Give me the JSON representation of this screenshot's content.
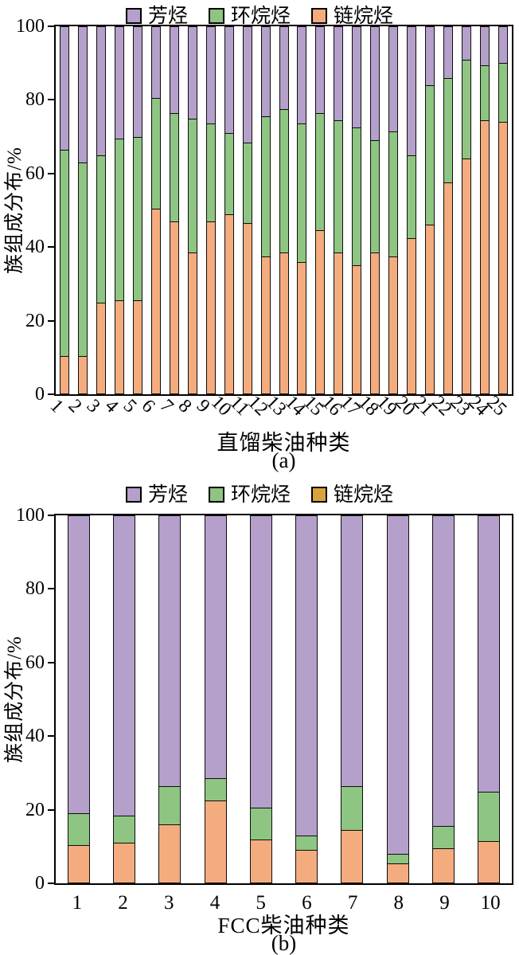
{
  "colors": {
    "aromatic": "#B4A0CA",
    "naphthene": "#8EC582",
    "paraffin": "#F4AC7E",
    "paraffin_legend_b": "#D8A33C",
    "frame": "#000000"
  },
  "chart_data": [
    {
      "id": "a",
      "type": "bar",
      "stacked": true,
      "xlabel": "直馏柴油种类",
      "ylabel": "族组成分布/%",
      "caption": "(a)",
      "ylim": [
        0,
        100
      ],
      "yticks": [
        0,
        20,
        40,
        60,
        80,
        100
      ],
      "legend_position": "top",
      "grid": false,
      "legend": [
        {
          "label": "芳烃",
          "color": "#B4A0CA"
        },
        {
          "label": "环烷烃",
          "color": "#8EC582"
        },
        {
          "label": "链烷烃",
          "color": "#F4AC7E"
        }
      ],
      "categories": [
        "1",
        "2",
        "3",
        "4",
        "5",
        "6",
        "7",
        "8",
        "9",
        "10",
        "11",
        "12",
        "13",
        "14",
        "15",
        "16",
        "17",
        "18",
        "19",
        "20",
        "21",
        "22",
        "23",
        "24",
        "25"
      ],
      "series": [
        {
          "name": "链烷烃",
          "color": "#F4AC7E",
          "values": [
            10.5,
            10.5,
            25,
            25.5,
            25.5,
            50.5,
            47,
            38.5,
            47,
            49,
            46.5,
            37.5,
            38.5,
            36,
            44.5,
            38.5,
            35,
            38.5,
            37.5,
            42.5,
            46,
            57.5,
            64,
            74.5,
            74
          ]
        },
        {
          "name": "环烷烃",
          "color": "#8EC582",
          "values": [
            56,
            52.5,
            40,
            44,
            44.5,
            30,
            29.5,
            36.5,
            26.5,
            22,
            22,
            38,
            39,
            37.5,
            32,
            36,
            37.5,
            30.5,
            34,
            22.5,
            38,
            28.5,
            27,
            15,
            16
          ]
        },
        {
          "name": "芳烃",
          "color": "#B4A0CA",
          "values": [
            33.5,
            37,
            35,
            30.5,
            30,
            19.5,
            23.5,
            25,
            26.5,
            29,
            31.5,
            24.5,
            22.5,
            26.5,
            23.5,
            25.5,
            27.5,
            31,
            28.5,
            35,
            16,
            14,
            9,
            10.5,
            10
          ]
        }
      ]
    },
    {
      "id": "b",
      "type": "bar",
      "stacked": true,
      "xlabel": "FCC柴油种类",
      "ylabel": "族组成分布/%",
      "caption": "(b)",
      "ylim": [
        0,
        100
      ],
      "yticks": [
        0,
        20,
        40,
        60,
        80,
        100
      ],
      "legend_position": "top",
      "grid": false,
      "legend": [
        {
          "label": "芳烃",
          "color": "#B4A0CA"
        },
        {
          "label": "环烷烃",
          "color": "#8EC582"
        },
        {
          "label": "链烷烃",
          "color": "#D8A33C"
        }
      ],
      "categories": [
        "1",
        "2",
        "3",
        "4",
        "5",
        "6",
        "7",
        "8",
        "9",
        "10"
      ],
      "series": [
        {
          "name": "链烷烃",
          "color": "#F4AC7E",
          "values": [
            10.5,
            11,
            16,
            22.5,
            12,
            9,
            14.5,
            5.5,
            9.5,
            11.5
          ]
        },
        {
          "name": "环烷烃",
          "color": "#8EC582",
          "values": [
            8.5,
            7.5,
            10.5,
            6,
            8.5,
            4,
            12,
            2.5,
            6,
            13.5
          ]
        },
        {
          "name": "芳烃",
          "color": "#B4A0CA",
          "values": [
            81,
            81.5,
            73.5,
            71.5,
            79.5,
            87,
            73.5,
            92,
            84.5,
            75
          ]
        }
      ]
    }
  ]
}
